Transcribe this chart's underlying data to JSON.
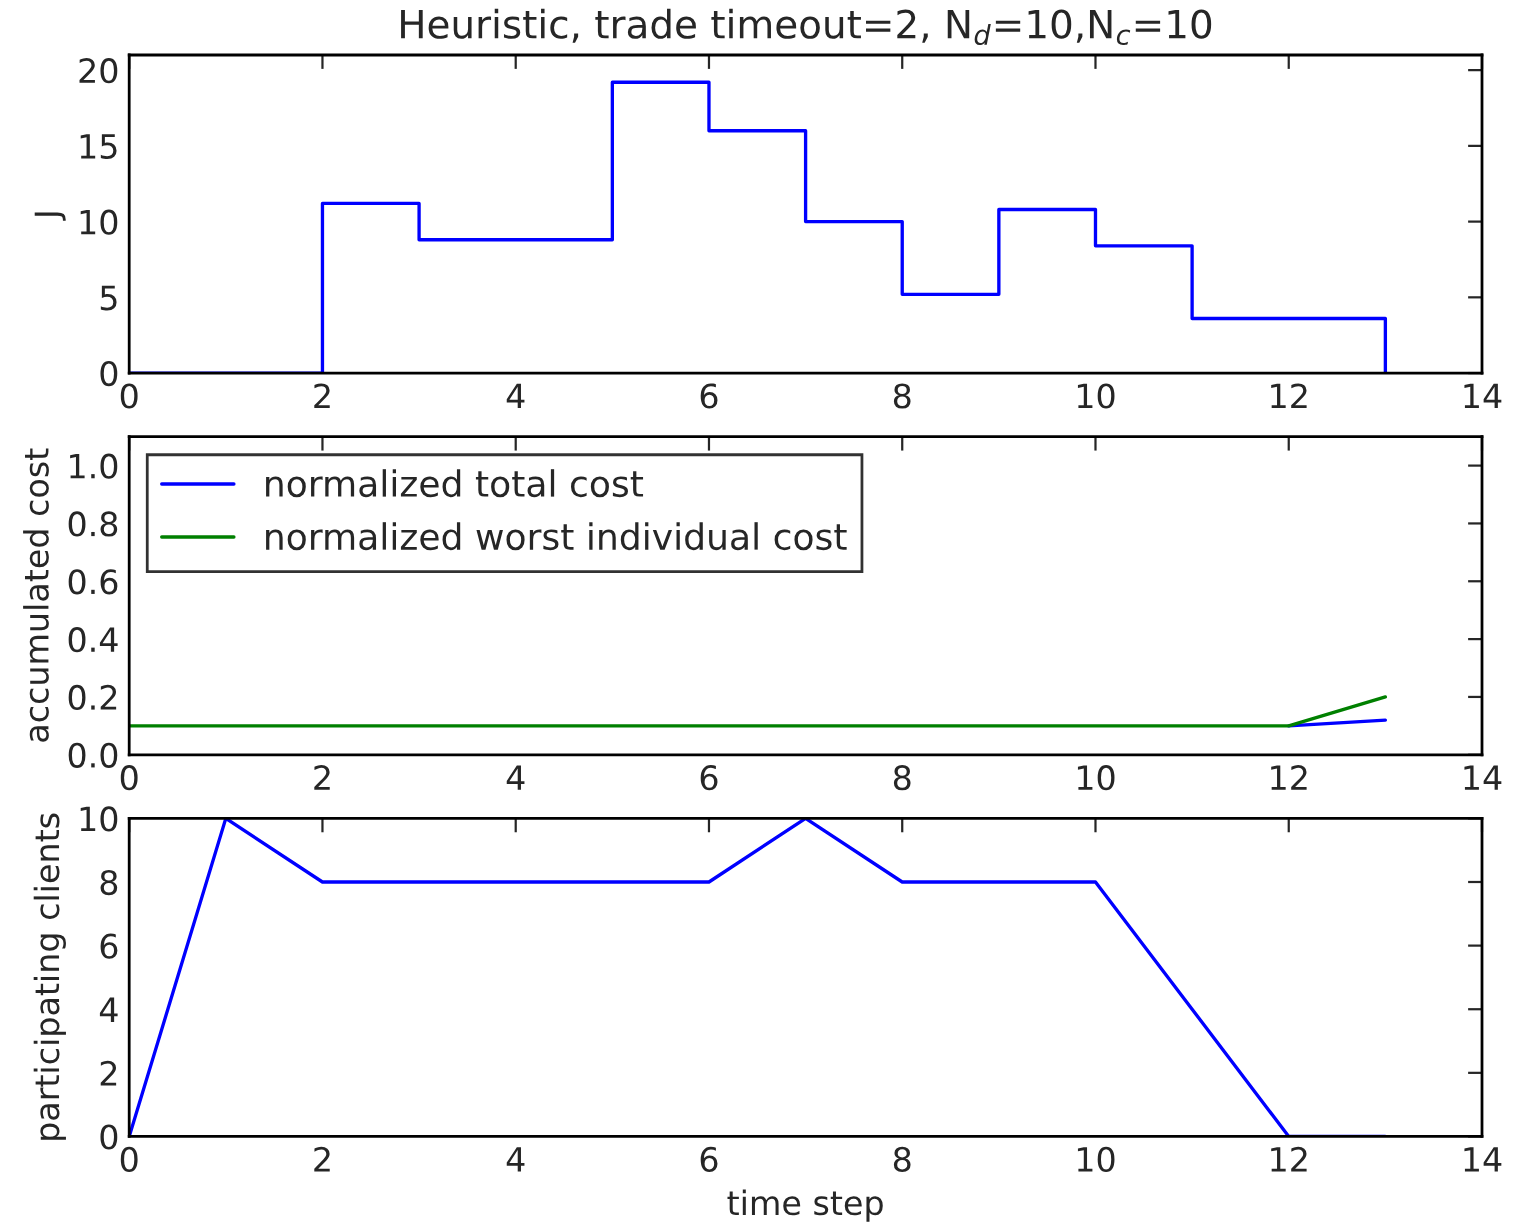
{
  "chart_data": [
    {
      "type": "step",
      "title": "Heuristic, trade timeout=2, N$_{d}$=10,N$_{c}$=10",
      "ylabel": "J",
      "x": [
        0,
        1,
        2,
        3,
        4,
        5,
        6,
        7,
        8,
        9,
        10,
        11,
        12,
        13
      ],
      "series": [
        {
          "color": "#0000ff",
          "values": [
            0,
            0,
            11.2,
            8.8,
            8.8,
            19.2,
            16,
            10,
            5.2,
            10.8,
            8.4,
            3.6,
            3.6,
            0
          ]
        }
      ],
      "xlim": [
        0,
        14
      ],
      "xticks": [
        0,
        2,
        4,
        6,
        8,
        10,
        12,
        14
      ],
      "ylim": [
        0,
        21
      ],
      "yticks": [
        0,
        5,
        10,
        15,
        20
      ],
      "grid": false,
      "legend": false
    },
    {
      "type": "line",
      "ylabel": "accumulated cost",
      "x": [
        0,
        1,
        2,
        3,
        4,
        5,
        6,
        7,
        8,
        9,
        10,
        11,
        12,
        13
      ],
      "series": [
        {
          "name": "normalized total cost",
          "color": "#0000ff",
          "values": [
            null,
            null,
            null,
            null,
            null,
            null,
            null,
            null,
            null,
            null,
            null,
            null,
            0.1,
            0.12
          ]
        },
        {
          "name": "normalized worst individual cost",
          "color": "#008000",
          "values": [
            0.1,
            0.1,
            0.1,
            0.1,
            0.1,
            0.1,
            0.1,
            0.1,
            0.1,
            0.1,
            0.1,
            0.1,
            0.1,
            0.2
          ]
        }
      ],
      "xlim": [
        0,
        14
      ],
      "xticks": [
        0,
        2,
        4,
        6,
        8,
        10,
        12,
        14
      ],
      "ylim": [
        0,
        1.1
      ],
      "yticks": [
        {
          "value": 0,
          "label": "0.0"
        },
        0.2,
        0.4,
        0.6,
        0.8,
        {
          "value": 1,
          "label": "1.0"
        }
      ],
      "grid": false,
      "legend": "top left"
    },
    {
      "type": "line",
      "ylabel": "participating clients",
      "xlabel": "time step",
      "x": [
        0,
        1,
        2,
        3,
        4,
        5,
        6,
        7,
        8,
        9,
        10,
        11,
        12,
        13
      ],
      "series": [
        {
          "color": "#0000ff",
          "values": [
            0,
            10,
            8,
            8,
            8,
            8,
            8,
            10,
            8,
            8,
            8,
            4,
            0,
            0
          ]
        }
      ],
      "xlim": [
        0,
        14
      ],
      "xticks": [
        0,
        2,
        4,
        6,
        8,
        10,
        12,
        14
      ],
      "ylim": [
        0,
        10
      ],
      "yticks": [
        0,
        2,
        4,
        6,
        8,
        10
      ],
      "grid": false,
      "legend": false
    }
  ]
}
